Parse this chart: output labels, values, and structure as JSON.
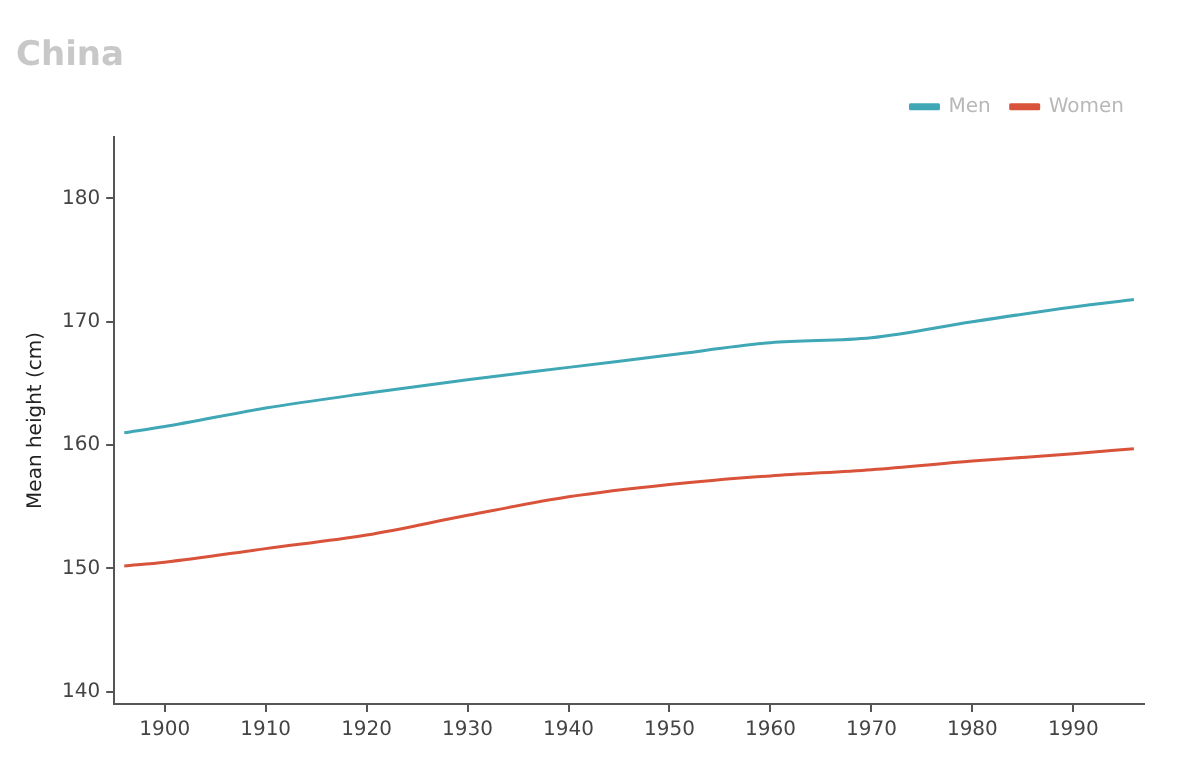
{
  "chart_data": {
    "type": "line",
    "title": "China",
    "ylabel": "Mean height (cm)",
    "x": [
      1896,
      1900,
      1910,
      1920,
      1930,
      1940,
      1950,
      1960,
      1970,
      1980,
      1990,
      1996
    ],
    "series": [
      {
        "name": "Men",
        "color": "#3fa7b5",
        "values": [
          161.0,
          161.5,
          163.0,
          164.2,
          165.3,
          166.3,
          167.3,
          168.3,
          168.7,
          170.0,
          171.2,
          171.8
        ]
      },
      {
        "name": "Women",
        "color": "#d9533a",
        "values": [
          150.2,
          150.5,
          151.6,
          152.7,
          154.3,
          155.8,
          156.8,
          157.5,
          158.0,
          158.7,
          159.3,
          159.7
        ]
      }
    ],
    "xlim": [
      1895,
      1997
    ],
    "xticks": [
      1900,
      1910,
      1920,
      1930,
      1940,
      1950,
      1960,
      1970,
      1980,
      1990
    ],
    "ylim": [
      139,
      185
    ],
    "yticks": [
      140,
      150,
      160,
      170,
      180
    ],
    "grid": false,
    "legend": "top right",
    "marker": "none",
    "line_style": "solid"
  }
}
